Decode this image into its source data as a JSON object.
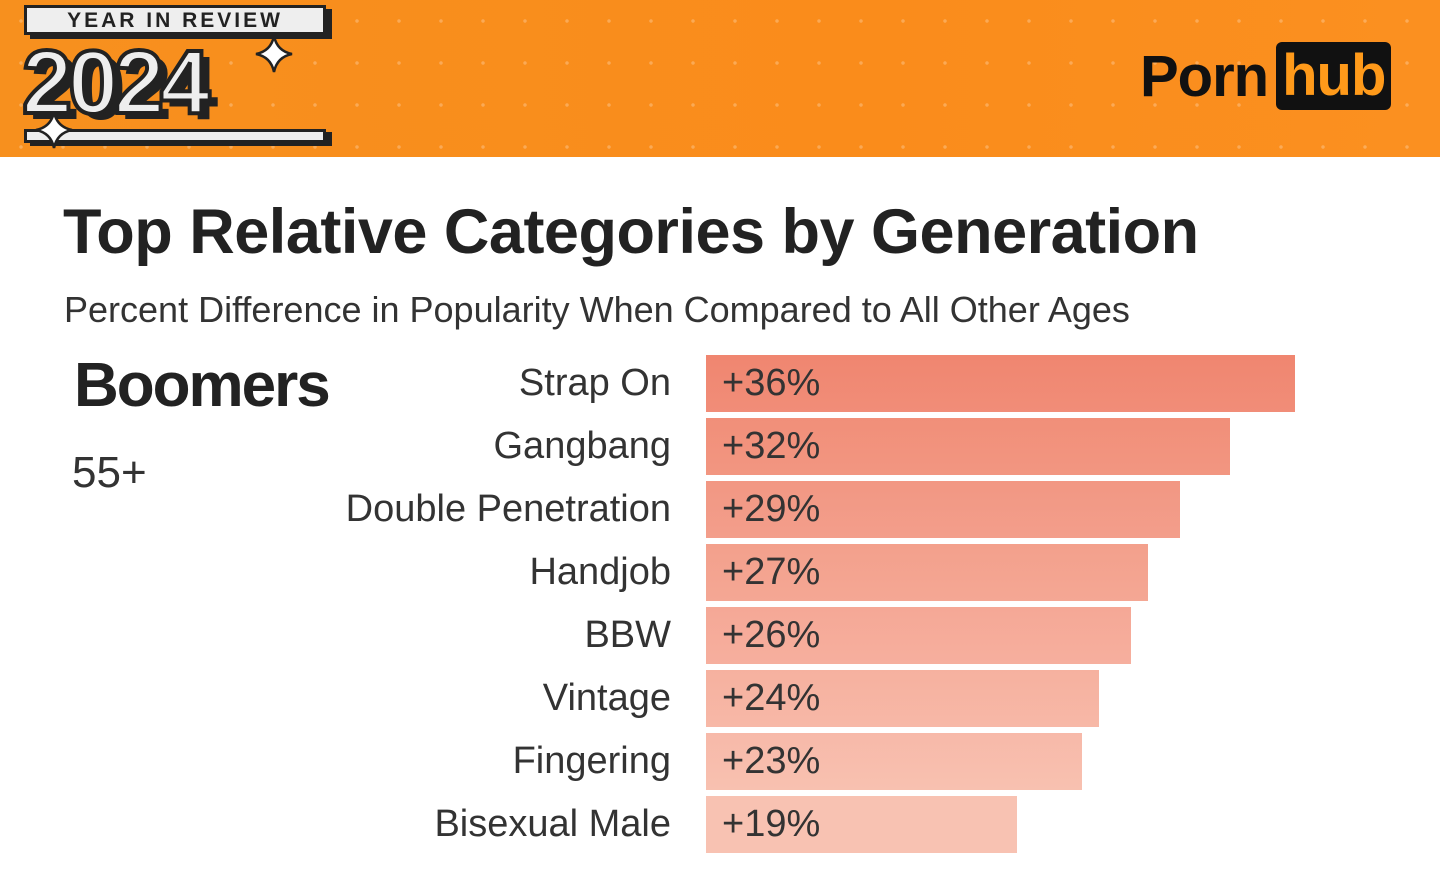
{
  "banner": {
    "badge_top": "YEAR IN REVIEW",
    "badge_year": "2024",
    "logo_left": "Porn",
    "logo_right": "hub",
    "colors": {
      "banner": "#f98d1c",
      "bar_top": "#f08670",
      "bar_bottom": "#f8c2b2"
    }
  },
  "chart_data": {
    "type": "bar",
    "orientation": "horizontal",
    "title": "Top Relative Categories by Generation",
    "subtitle": "Percent Difference in Popularity When Compared to All Other Ages",
    "group": "Boomers",
    "group_age": "55+",
    "categories": [
      "Strap On",
      "Gangbang",
      "Double Penetration",
      "Handjob",
      "BBW",
      "Vintage",
      "Fingering",
      "Bisexual Male"
    ],
    "values": [
      36,
      32,
      29,
      27,
      26,
      24,
      23,
      19
    ],
    "labels": [
      "+36%",
      "+32%",
      "+29%",
      "+27%",
      "+26%",
      "+24%",
      "+23%",
      "+19%"
    ],
    "xlim": [
      0,
      36
    ],
    "grid": false
  }
}
